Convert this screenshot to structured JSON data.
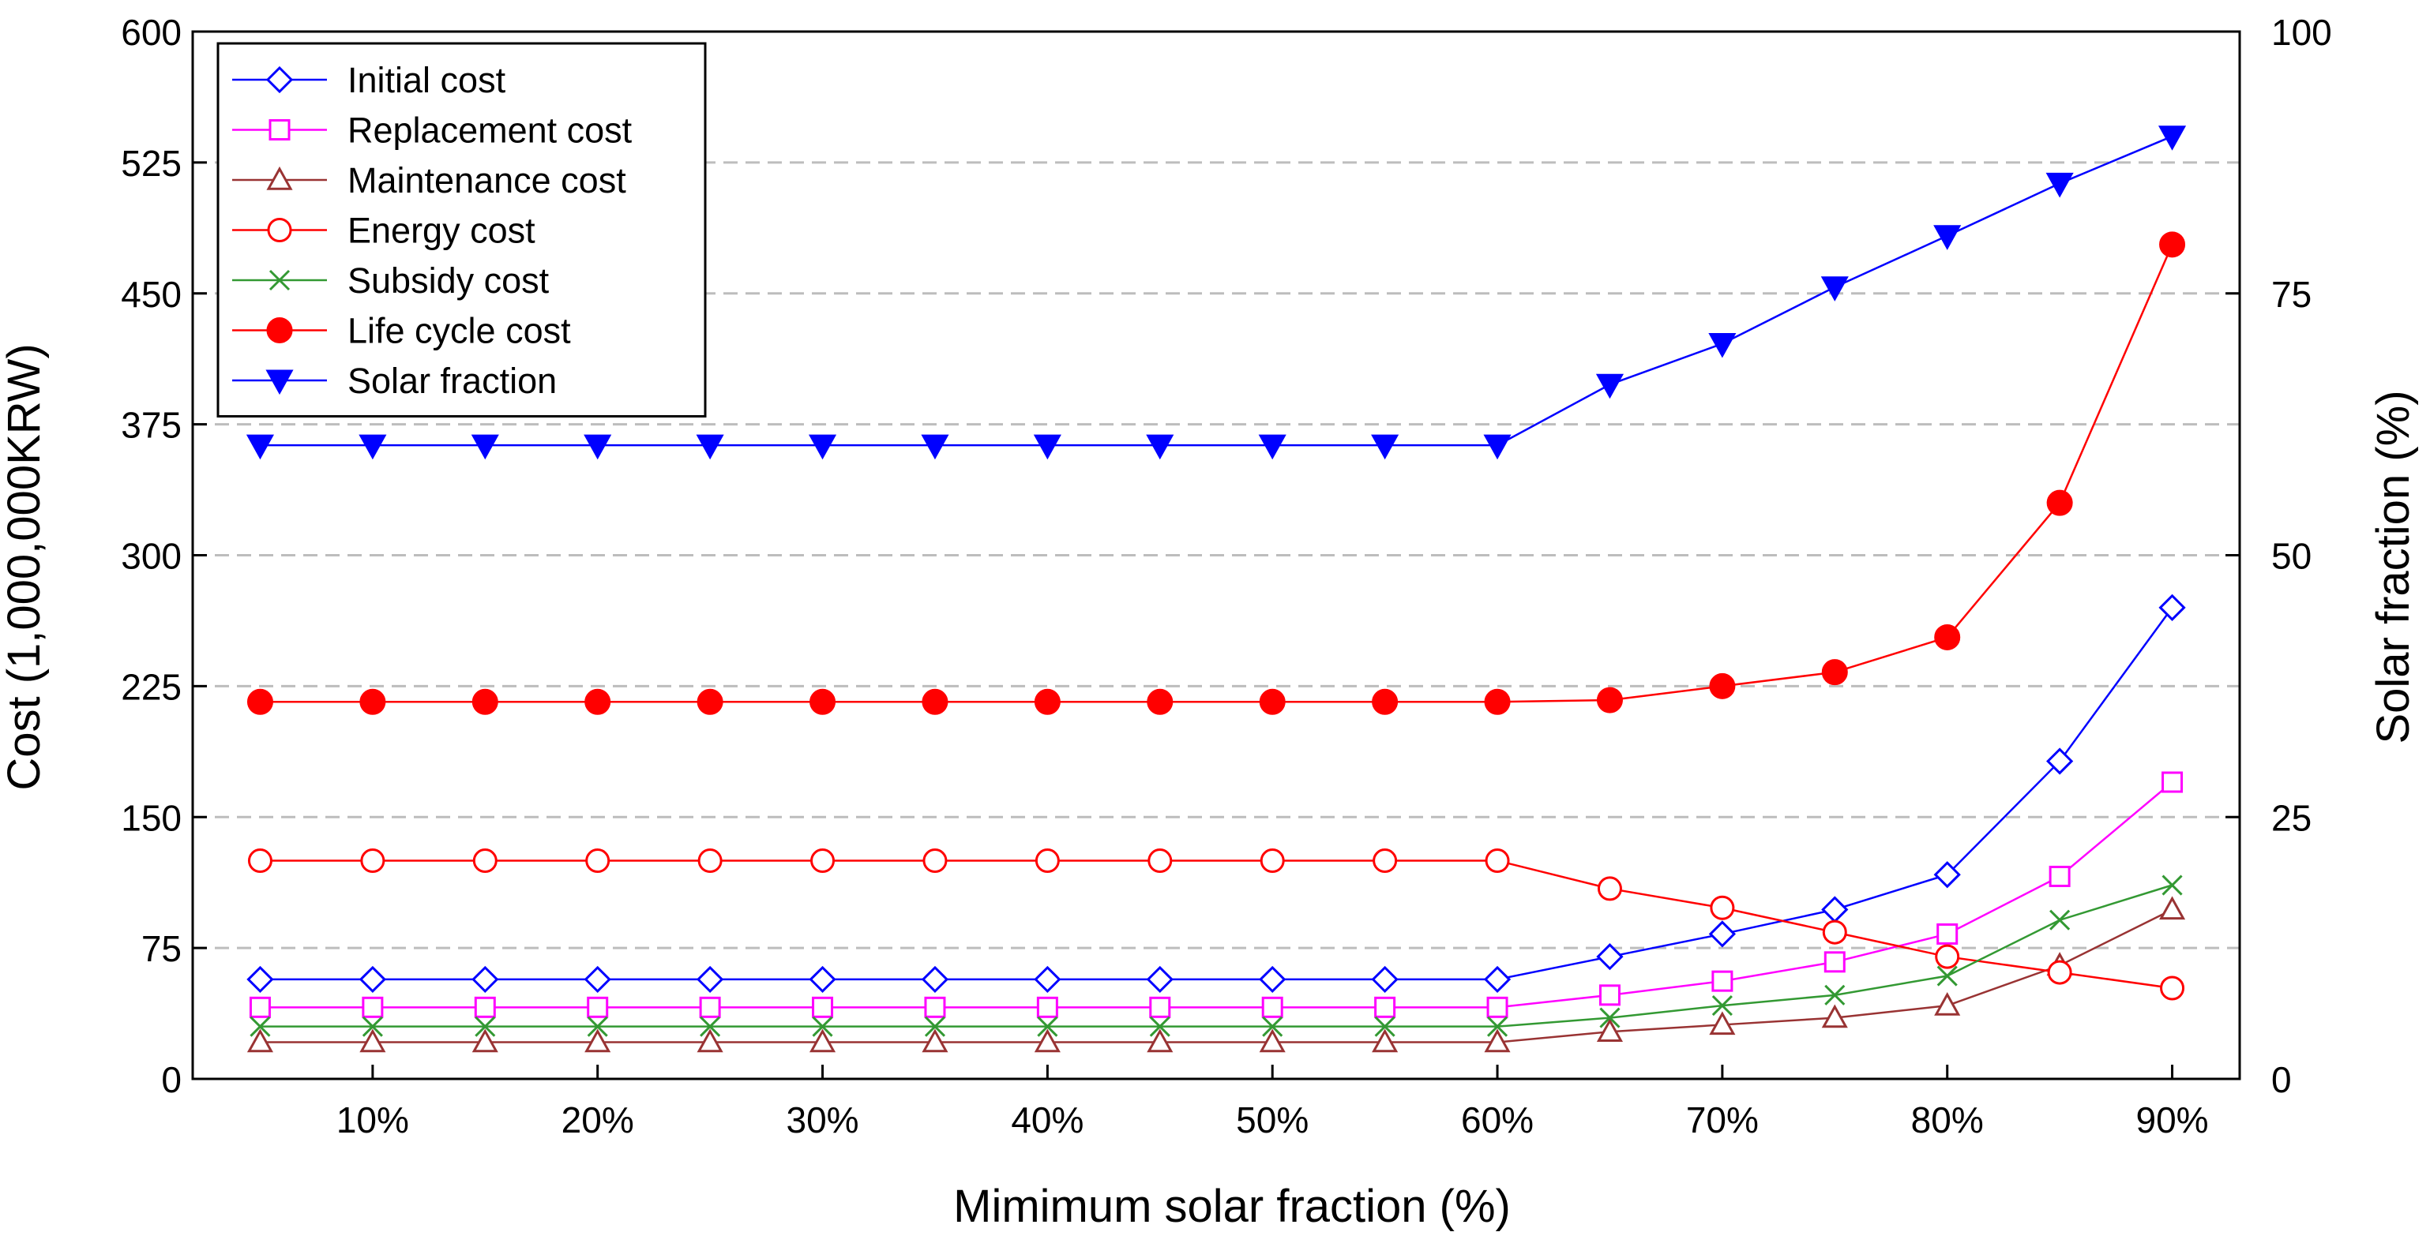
{
  "chart_data": {
    "type": "line",
    "x": [
      5,
      10,
      15,
      20,
      25,
      30,
      35,
      40,
      45,
      50,
      55,
      60,
      65,
      70,
      75,
      80,
      85,
      90
    ],
    "x_ticks": [
      10,
      20,
      30,
      40,
      50,
      60,
      70,
      80,
      90
    ],
    "x_tick_labels": [
      "10%",
      "20%",
      "30%",
      "40%",
      "50%",
      "60%",
      "70%",
      "80%",
      "90%"
    ],
    "xlim": [
      2,
      93
    ],
    "xlabel": "Mimimum solar fraction (%)",
    "ylabel": "Cost (1,000,000KRW)",
    "ylim": [
      0,
      600
    ],
    "y_ticks": [
      0,
      75,
      150,
      225,
      300,
      375,
      450,
      525,
      600
    ],
    "y2label": "Solar fraction (%)",
    "y2lim": [
      0,
      100
    ],
    "y2_ticks": [
      0,
      25,
      50,
      75,
      100
    ],
    "grid": "horizontal dashed",
    "legend_position": "top-left",
    "series": [
      {
        "name": "Initial cost",
        "axis": "left",
        "color": "#0000ff",
        "marker": "diamond",
        "filled": false,
        "values": [
          57,
          57,
          57,
          57,
          57,
          57,
          57,
          57,
          57,
          57,
          57,
          57,
          70,
          83,
          97,
          117,
          182,
          270
        ]
      },
      {
        "name": "Replacement cost",
        "axis": "left",
        "color": "#ff00ff",
        "marker": "square",
        "filled": false,
        "values": [
          41,
          41,
          41,
          41,
          41,
          41,
          41,
          41,
          41,
          41,
          41,
          41,
          48,
          56,
          67,
          83,
          116,
          170
        ]
      },
      {
        "name": "Maintenance cost",
        "axis": "left",
        "color": "#993333",
        "marker": "triangle-up",
        "filled": false,
        "values": [
          21,
          21,
          21,
          21,
          21,
          21,
          21,
          21,
          21,
          21,
          21,
          21,
          27,
          31,
          35,
          42,
          65,
          97
        ]
      },
      {
        "name": "Energy cost",
        "axis": "left",
        "color": "#ff0000",
        "marker": "circle",
        "filled": false,
        "values": [
          125,
          125,
          125,
          125,
          125,
          125,
          125,
          125,
          125,
          125,
          125,
          125,
          109,
          98,
          84,
          70,
          61,
          52
        ]
      },
      {
        "name": "Subsidy cost",
        "axis": "left",
        "color": "#339933",
        "marker": "x",
        "filled": false,
        "values": [
          30,
          30,
          30,
          30,
          30,
          30,
          30,
          30,
          30,
          30,
          30,
          30,
          35,
          42,
          48,
          59,
          91,
          111
        ]
      },
      {
        "name": "Life cycle cost",
        "axis": "left",
        "color": "#ff0000",
        "marker": "circle",
        "filled": true,
        "values": [
          216,
          216,
          216,
          216,
          216,
          216,
          216,
          216,
          216,
          216,
          216,
          216,
          217,
          225,
          233,
          253,
          330,
          478
        ]
      },
      {
        "name": "Solar fraction",
        "axis": "right",
        "color": "#0000ff",
        "marker": "triangle-down",
        "filled": true,
        "values": [
          60.5,
          60.5,
          60.5,
          60.5,
          60.5,
          60.5,
          60.5,
          60.5,
          60.5,
          60.5,
          60.5,
          60.5,
          66.3,
          70.2,
          75.6,
          80.5,
          85.5,
          90
        ]
      }
    ]
  }
}
